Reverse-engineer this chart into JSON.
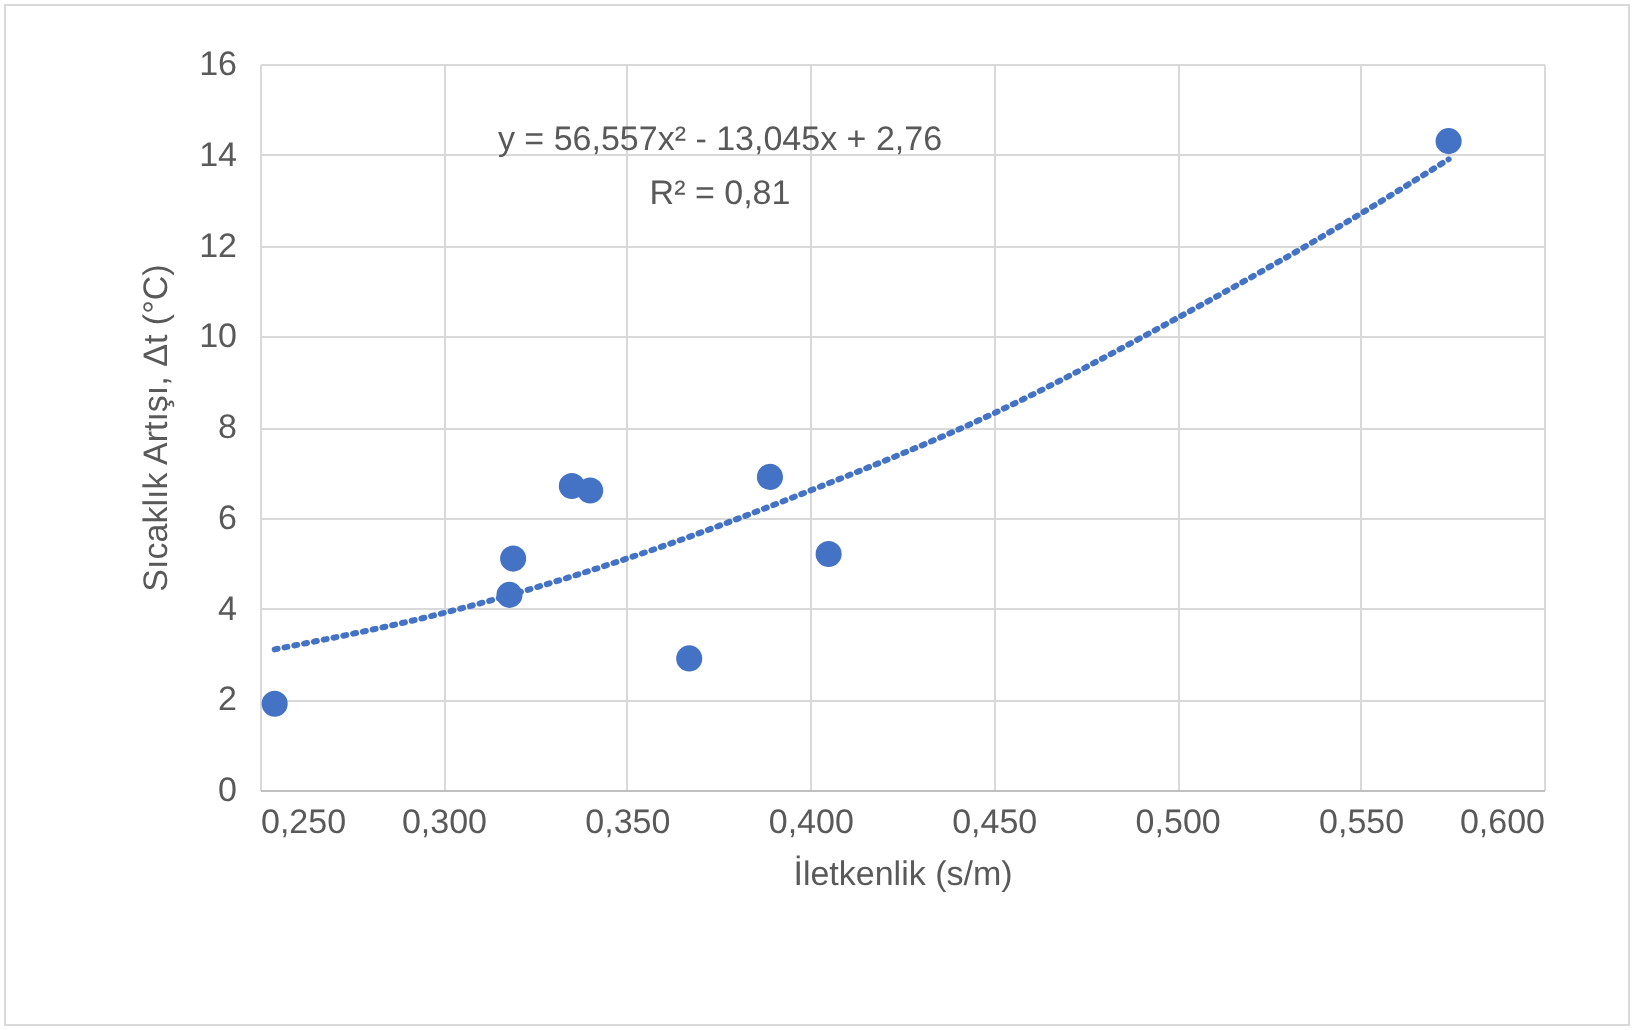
{
  "chart_data": {
    "type": "scatter",
    "xlabel": "İletkenlik (s/m)",
    "ylabel": "Sıcaklık Artışı, Δt (°C)",
    "xlim": [
      0.25,
      0.6
    ],
    "xticks": [
      {
        "value": 0.25,
        "label": "0,250"
      },
      {
        "value": 0.3,
        "label": "0,300"
      },
      {
        "value": 0.35,
        "label": "0,350"
      },
      {
        "value": 0.4,
        "label": "0,400"
      },
      {
        "value": 0.45,
        "label": "0,450"
      },
      {
        "value": 0.5,
        "label": "0,500"
      },
      {
        "value": 0.55,
        "label": "0,550"
      },
      {
        "value": 0.6,
        "label": "0,600"
      }
    ],
    "ylim": [
      0,
      16
    ],
    "yticks": [
      0,
      2,
      4,
      6,
      8,
      10,
      12,
      14,
      16
    ],
    "grid": true,
    "annotations": [
      "y = 56,557x² - 13,045x + 2,76",
      "R² = 0,81"
    ],
    "series": [
      {
        "marker": "circle",
        "color": "#4472c4",
        "x": [
          0.254,
          0.319,
          0.318,
          0.335,
          0.34,
          0.367,
          0.389,
          0.405,
          0.574
        ],
        "values": [
          1.9,
          5.1,
          4.3,
          6.7,
          6.6,
          2.9,
          6.9,
          5.2,
          14.3
        ]
      },
      {
        "type": "line",
        "color": "#4472c4",
        "line_style": "dotted",
        "x": [
          0.254,
          0.3,
          0.35,
          0.4,
          0.45,
          0.5,
          0.55,
          0.574
        ],
        "values": [
          3.1,
          3.9,
          5.1,
          6.6,
          8.3,
          10.4,
          12.7,
          13.9
        ]
      }
    ]
  }
}
